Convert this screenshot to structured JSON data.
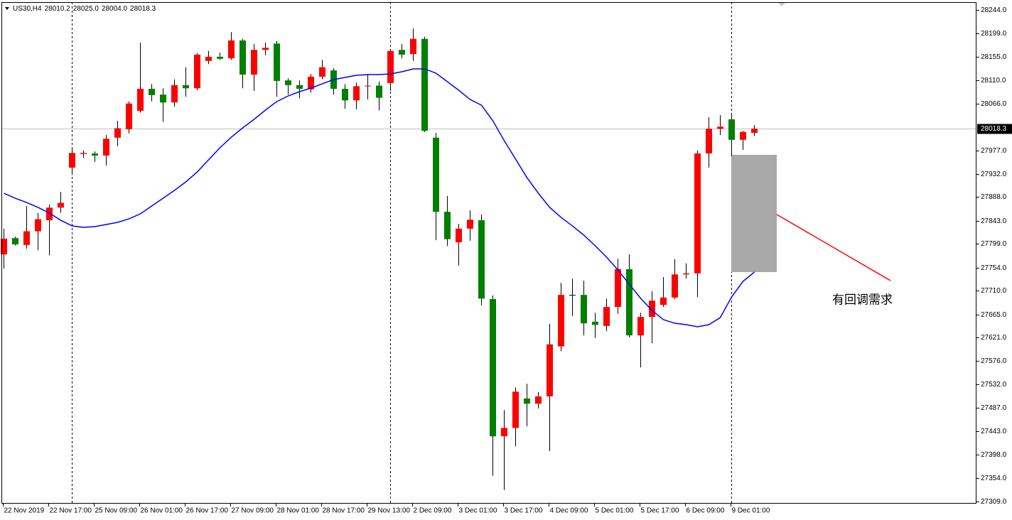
{
  "chart_data": {
    "type": "candlestick",
    "title": "US30,H4",
    "header_labels": [
      "28010.2",
      "28025.0",
      "28004.0",
      "28018.3"
    ],
    "categories": [
      "22 Nov 2019",
      null,
      null,
      null,
      "22 Nov 17:00",
      null,
      null,
      null,
      "25 Nov 09:00",
      null,
      null,
      null,
      "26 Nov 01:00",
      null,
      null,
      null,
      "26 Nov 17:00",
      null,
      null,
      null,
      "27 Nov 09:00",
      null,
      null,
      null,
      "28 Nov 01:00",
      null,
      null,
      null,
      "28 Nov 17:00",
      null,
      null,
      null,
      "29 Nov 13:00",
      null,
      null,
      null,
      "2 Dec 09:00",
      null,
      null,
      null,
      "3 Dec 01:00",
      null,
      null,
      null,
      "3 Dec 17:00",
      null,
      null,
      null,
      "4 Dec 09:00",
      null,
      null,
      null,
      "5 Dec 01:00",
      null,
      null,
      null,
      "5 Dec 17:00",
      null,
      null,
      null,
      "6 Dec 09:00",
      null,
      null,
      null,
      "9 Dec 01:00",
      null,
      null
    ],
    "open": [
      27779,
      27810,
      27797,
      27823,
      27844,
      27868,
      27944,
      27970,
      27971,
      27967,
      28001,
      28017,
      28052,
      28094,
      28083,
      28068,
      28101,
      28095,
      28147,
      28155,
      28152,
      28186,
      28121,
      28168,
      28180,
      28110,
      28101,
      28093,
      28117,
      28129,
      28094,
      28072,
      28099,
      28100,
      28105,
      28168,
      28160,
      28189,
      28001,
      27860,
      27802,
      27828,
      27844,
      27694,
      27433,
      27449,
      27505,
      27495,
      27509,
      27604,
      27702,
      27702,
      27651,
      27643,
      27679,
      27751,
      27625,
      27660,
      27683,
      27697,
      27741,
      27743,
      27971,
      28018,
      28036,
      27997,
      28010.2
    ],
    "high": [
      27828,
      27813,
      27871,
      27858,
      27874,
      27898,
      27982,
      27977,
      27975,
      28006,
      28033,
      28070,
      28182,
      28103,
      28095,
      28112,
      28135,
      28162,
      28166,
      28163,
      28202,
      28189,
      28179,
      28182,
      28185,
      28114,
      28110,
      28122,
      28149,
      28133,
      28103,
      28106,
      28121,
      28108,
      28168,
      28179,
      28209,
      28193,
      28010,
      27890,
      27837,
      27863,
      27855,
      27701,
      27483,
      27526,
      27533,
      27517,
      27647,
      27725,
      27733,
      27729,
      27668,
      27695,
      27771,
      27779,
      27668,
      27709,
      27736,
      27770,
      27762,
      27977,
      28040,
      28044,
      28047,
      28014,
      28025
    ],
    "low": [
      27752,
      27796,
      27790,
      27787,
      27777,
      27858,
      27930,
      27963,
      27955,
      27948,
      27985,
      28009,
      28049,
      28070,
      28031,
      28060,
      28079,
      28091,
      28141,
      28149,
      28149,
      28095,
      28090,
      28158,
      28079,
      28083,
      28076,
      28087,
      28112,
      28083,
      28056,
      28055,
      28074,
      28053,
      28090,
      28152,
      28147,
      28012,
      27806,
      27795,
      27758,
      27805,
      27682,
      27358,
      27331,
      27414,
      27452,
      27486,
      27405,
      27595,
      27662,
      27625,
      27620,
      27633,
      27666,
      27621,
      27564,
      27610,
      27679,
      27694,
      27733,
      27698,
      27944,
      28006,
      27966,
      27978,
      28004
    ],
    "close": [
      27809,
      27798,
      27823,
      27846,
      27868,
      27877,
      27972,
      27972,
      27967,
      27999,
      28019,
      28066,
      28094,
      28082,
      28068,
      28101,
      28095,
      28159,
      28155,
      28151,
      28186,
      28121,
      28168,
      28172,
      28109,
      28101,
      28094,
      28117,
      28135,
      28094,
      28072,
      28099,
      28100,
      28077,
      28166,
      28159,
      28189,
      28014,
      27860,
      27808,
      27828,
      27845,
      27695,
      27433,
      27449,
      27518,
      27495,
      27509,
      27608,
      27702,
      27702,
      27648,
      27645,
      27679,
      27751,
      27625,
      27660,
      27691,
      27697,
      27741,
      27743,
      27971,
      28018,
      28022,
      27997,
      28012,
      28018.3
    ],
    "up_color": "#ff0000",
    "down_color": "#008000",
    "wick_color": "#000000",
    "ma": {
      "color": "#0000ff",
      "values": [
        27895.4,
        27885.9,
        27877.8,
        27868.4,
        27857.6,
        27844.0,
        27833.2,
        27830.5,
        27831.9,
        27835.9,
        27840.0,
        27846.7,
        27856.2,
        27871.1,
        27885.9,
        27900.8,
        27917.0,
        27935.9,
        27958.9,
        27981.9,
        28002.1,
        28019.7,
        28035.9,
        28053.5,
        28069.7,
        28080.5,
        28088.6,
        28095.4,
        28103.5,
        28111.6,
        28115.6,
        28119.7,
        28121.0,
        28121.0,
        28122.4,
        28126.4,
        28131.9,
        28131.9,
        28123.7,
        28107.5,
        28091.3,
        28073.7,
        28062.9,
        28033.2,
        27995.4,
        27960.2,
        27925.1,
        27895.4,
        27868.4,
        27849.4,
        27833.2,
        27815.7,
        27795.4,
        27773.8,
        27749.5,
        27722.4,
        27695.4,
        27672.4,
        27654.9,
        27648.1,
        27645.4,
        27641.4,
        27645.4,
        27658.9,
        27698.1,
        27727.8,
        27745.4
      ]
    },
    "current_price": {
      "value": 28018.3,
      "label": "28018.3"
    },
    "ylim": [
      27309,
      28244
    ],
    "yticks": [
      {
        "value": 28244,
        "label": "28244.0"
      },
      {
        "value": 28199,
        "label": "28199.0"
      },
      {
        "value": 28155,
        "label": "28155.0"
      },
      {
        "value": 28110,
        "label": "28110.0"
      },
      {
        "value": 28066,
        "label": "28066.0"
      },
      {
        "value": 27977,
        "label": "27977.0"
      },
      {
        "value": 27932,
        "label": "27932.0"
      },
      {
        "value": 27888,
        "label": "27888.0"
      },
      {
        "value": 27843,
        "label": "27843.0"
      },
      {
        "value": 27799,
        "label": "27799.0"
      },
      {
        "value": 27754,
        "label": "27754.0"
      },
      {
        "value": 27710,
        "label": "27710.0"
      },
      {
        "value": 27665,
        "label": "27665.0"
      },
      {
        "value": 27621,
        "label": "27621.0"
      },
      {
        "value": 27576,
        "label": "27576.0"
      },
      {
        "value": 27532,
        "label": "27532.0"
      },
      {
        "value": 27487,
        "label": "27487.0"
      },
      {
        "value": 27443,
        "label": "27443.0"
      },
      {
        "value": 27398,
        "label": "27398.0"
      },
      {
        "value": 27354,
        "label": "27354.0"
      },
      {
        "value": 27309,
        "label": "27309.0"
      }
    ],
    "annotation": "有回调需求"
  }
}
